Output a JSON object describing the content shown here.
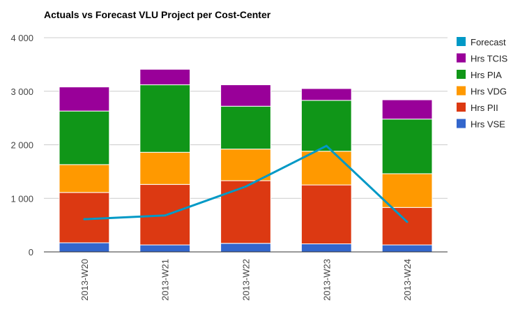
{
  "chart_data": {
    "type": "bar",
    "stacked": true,
    "title": "Actuals vs Forecast VLU Project per Cost-Center",
    "xlabel": "",
    "ylabel": "",
    "ylim": [
      0,
      4000
    ],
    "yticks": [
      0,
      1000,
      2000,
      3000,
      4000
    ],
    "ytick_labels": [
      "0",
      "1 000",
      "2 000",
      "3 000",
      "4 000"
    ],
    "categories": [
      "2013-W20",
      "2013-W21",
      "2013-W22",
      "2013-W23",
      "2013-W24"
    ],
    "grid": true,
    "legend_position": "right",
    "series": [
      {
        "name": "Hrs VSE",
        "kind": "bar",
        "color": "#3366cc",
        "values": [
          170,
          130,
          160,
          150,
          130
        ]
      },
      {
        "name": "Hrs PII",
        "kind": "bar",
        "color": "#dc3912",
        "values": [
          940,
          1130,
          1170,
          1100,
          700
        ]
      },
      {
        "name": "Hrs VDG",
        "kind": "bar",
        "color": "#ff9900",
        "values": [
          520,
          600,
          590,
          630,
          630
        ]
      },
      {
        "name": "Hrs PIA",
        "kind": "bar",
        "color": "#109618",
        "values": [
          1000,
          1260,
          800,
          950,
          1020
        ]
      },
      {
        "name": "Hrs TCIS",
        "kind": "bar",
        "color": "#990099",
        "values": [
          450,
          290,
          400,
          220,
          360
        ]
      },
      {
        "name": "Forecast",
        "kind": "line",
        "color": "#0099c6",
        "values": [
          610,
          680,
          1220,
          1980,
          560
        ]
      }
    ],
    "legend_order": [
      "Forecast",
      "Hrs TCIS",
      "Hrs PIA",
      "Hrs VDG",
      "Hrs PII",
      "Hrs VSE"
    ]
  }
}
